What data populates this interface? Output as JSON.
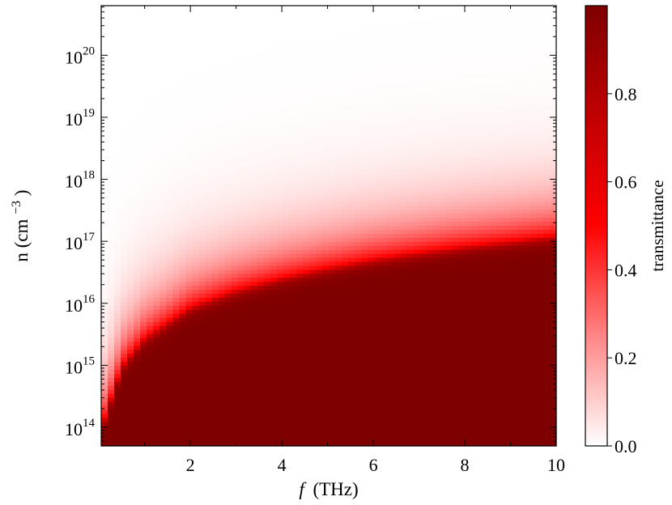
{
  "chart_data": {
    "type": "heatmap",
    "xlabel_prefix": "f",
    "xlabel_unit": "(THz)",
    "ylabel": "n (cm",
    "ylabel_exp": "−3",
    "ylabel_close": ")",
    "xlim": [
      0.05,
      10
    ],
    "ylim_log10": [
      13.7,
      20.8
    ],
    "y_scale": "log",
    "x_ticks": [
      {
        "value": 2,
        "label": "2"
      },
      {
        "value": 4,
        "label": "4"
      },
      {
        "value": 6,
        "label": "6"
      },
      {
        "value": 8,
        "label": "8"
      },
      {
        "value": 10,
        "label": "10"
      }
    ],
    "y_ticks": [
      {
        "exp": 14,
        "base": "10",
        "sup": "14"
      },
      {
        "exp": 15,
        "base": "10",
        "sup": "15"
      },
      {
        "exp": 16,
        "base": "10",
        "sup": "16"
      },
      {
        "exp": 17,
        "base": "10",
        "sup": "17"
      },
      {
        "exp": 18,
        "base": "10",
        "sup": "18"
      },
      {
        "exp": 19,
        "base": "10",
        "sup": "19"
      },
      {
        "exp": 20,
        "base": "10",
        "sup": "20"
      }
    ],
    "transition_boundary": {
      "description_values": "log10 n at which transmittance ≈ 0.5, vs f (THz)",
      "f": [
        0.05,
        0.5,
        1,
        2,
        3,
        4,
        5,
        6,
        7,
        8,
        9,
        10
      ],
      "log10_n": [
        14.0,
        15.0,
        15.45,
        15.95,
        16.22,
        16.42,
        16.58,
        16.72,
        16.83,
        16.93,
        17.01,
        17.1
      ]
    },
    "colorbar": {
      "label": "transmittance",
      "range": [
        0,
        1
      ],
      "ticks": [
        {
          "value": 0.0,
          "label": "0.0"
        },
        {
          "value": 0.2,
          "label": "0.2"
        },
        {
          "value": 0.4,
          "label": "0.4"
        },
        {
          "value": 0.6,
          "label": "0.6"
        },
        {
          "value": 0.8,
          "label": "0.8"
        }
      ],
      "colors": [
        "#ffffff",
        "#ff8585",
        "#ff0000",
        "#c00000",
        "#7f0000"
      ]
    },
    "grid": false
  }
}
